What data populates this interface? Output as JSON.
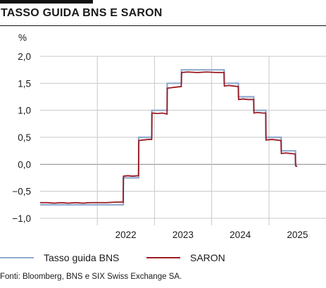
{
  "header": {
    "title": "TASSO GUIDA BNS E SARON"
  },
  "footer": {
    "source": "Fonti: Bloomberg, BNS e SIX Swiss Exchange SA."
  },
  "colors": {
    "snb": "#8ea9cc",
    "saron": "#9b1b24",
    "grid": "#c8c8c8",
    "zero_line": "#888888"
  },
  "chart_data": {
    "type": "line",
    "ylabel": "%",
    "ylim": [
      -1.0,
      2.0
    ],
    "yticks": [
      2.0,
      1.5,
      1.0,
      0.5,
      0.0,
      -0.5,
      -1.0
    ],
    "ytick_labels": [
      "2,0",
      "1,5",
      "1,0",
      "0,5",
      "0,0",
      "−0,5",
      "−1,0"
    ],
    "xlim": [
      "2021-01-01",
      "2025-12-31"
    ],
    "x_year_labels": [
      "2022",
      "2023",
      "2024",
      "2025"
    ],
    "legend_position": "bottom",
    "grid": true,
    "series": [
      {
        "name": "Tasso guida BNS",
        "step": true,
        "points": [
          [
            "2021-01-01",
            -0.75
          ],
          [
            "2022-06-16",
            -0.25
          ],
          [
            "2022-09-22",
            0.5
          ],
          [
            "2022-12-15",
            1.0
          ],
          [
            "2023-03-23",
            1.5
          ],
          [
            "2023-06-22",
            1.75
          ],
          [
            "2024-03-21",
            1.5
          ],
          [
            "2024-06-20",
            1.25
          ],
          [
            "2024-09-26",
            1.0
          ],
          [
            "2024-12-12",
            0.5
          ],
          [
            "2025-03-20",
            0.25
          ],
          [
            "2025-06-19",
            0.0
          ],
          [
            "2025-06-30",
            0.0
          ]
        ]
      },
      {
        "name": "SARON",
        "step": false,
        "points": [
          [
            "2021-01-01",
            -0.71
          ],
          [
            "2021-02-15",
            -0.71
          ],
          [
            "2021-04-01",
            -0.72
          ],
          [
            "2021-05-15",
            -0.71
          ],
          [
            "2021-07-01",
            -0.72
          ],
          [
            "2021-08-15",
            -0.71
          ],
          [
            "2021-10-01",
            -0.72
          ],
          [
            "2021-11-15",
            -0.71
          ],
          [
            "2022-01-01",
            -0.71
          ],
          [
            "2022-03-01",
            -0.71
          ],
          [
            "2022-05-01",
            -0.7
          ],
          [
            "2022-06-15",
            -0.7
          ],
          [
            "2022-06-17",
            -0.22
          ],
          [
            "2022-07-15",
            -0.21
          ],
          [
            "2022-08-15",
            -0.22
          ],
          [
            "2022-09-21",
            -0.21
          ],
          [
            "2022-09-23",
            0.44
          ],
          [
            "2022-10-20",
            0.45
          ],
          [
            "2022-11-20",
            0.46
          ],
          [
            "2022-12-14",
            0.46
          ],
          [
            "2022-12-16",
            0.95
          ],
          [
            "2023-01-20",
            0.94
          ],
          [
            "2023-02-20",
            0.95
          ],
          [
            "2023-03-22",
            0.93
          ],
          [
            "2023-03-24",
            1.41
          ],
          [
            "2023-04-20",
            1.42
          ],
          [
            "2023-05-20",
            1.43
          ],
          [
            "2023-06-21",
            1.44
          ],
          [
            "2023-06-23",
            1.7
          ],
          [
            "2023-08-01",
            1.71
          ],
          [
            "2023-10-01",
            1.7
          ],
          [
            "2023-12-01",
            1.71
          ],
          [
            "2024-02-01",
            1.7
          ],
          [
            "2024-03-20",
            1.7
          ],
          [
            "2024-03-22",
            1.45
          ],
          [
            "2024-04-20",
            1.46
          ],
          [
            "2024-05-20",
            1.45
          ],
          [
            "2024-06-19",
            1.44
          ],
          [
            "2024-06-21",
            1.2
          ],
          [
            "2024-07-20",
            1.21
          ],
          [
            "2024-08-20",
            1.2
          ],
          [
            "2024-09-25",
            1.2
          ],
          [
            "2024-09-27",
            0.95
          ],
          [
            "2024-10-20",
            0.96
          ],
          [
            "2024-11-20",
            0.95
          ],
          [
            "2024-12-11",
            0.95
          ],
          [
            "2024-12-13",
            0.45
          ],
          [
            "2025-01-20",
            0.46
          ],
          [
            "2025-02-20",
            0.45
          ],
          [
            "2025-03-19",
            0.44
          ],
          [
            "2025-03-21",
            0.2
          ],
          [
            "2025-04-20",
            0.21
          ],
          [
            "2025-05-20",
            0.2
          ],
          [
            "2025-06-18",
            0.19
          ],
          [
            "2025-06-20",
            -0.03
          ],
          [
            "2025-06-30",
            -0.04
          ]
        ]
      }
    ]
  }
}
